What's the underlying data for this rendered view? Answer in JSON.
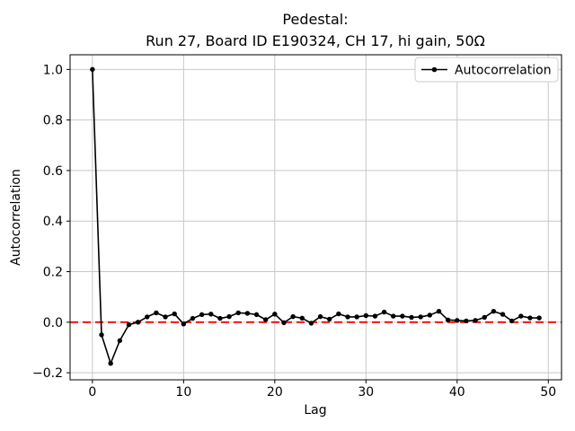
{
  "chart_data": {
    "type": "line",
    "title": "Pedestal:\nRun 27, Board ID E190324, CH 17, hi gain, 50Ω",
    "title_lines": [
      "Pedestal:",
      "Run 27, Board ID E190324, CH 17, hi gain, 50Ω"
    ],
    "xlabel": "Lag",
    "ylabel": "Autocorrelation",
    "legend": {
      "position": "upper right",
      "entries": [
        "Autocorrelation"
      ]
    },
    "x": [
      0,
      1,
      2,
      3,
      4,
      5,
      6,
      7,
      8,
      9,
      10,
      11,
      12,
      13,
      14,
      15,
      16,
      17,
      18,
      19,
      20,
      21,
      22,
      23,
      24,
      25,
      26,
      27,
      28,
      29,
      30,
      31,
      32,
      33,
      34,
      35,
      36,
      37,
      38,
      39,
      40,
      41,
      42,
      43,
      44,
      45,
      46,
      47,
      48,
      49
    ],
    "series": [
      {
        "name": "Autocorrelation",
        "color": "#000000",
        "marker": "o",
        "values": [
          1.0,
          -0.05,
          -0.163,
          -0.073,
          -0.01,
          0.0,
          0.021,
          0.037,
          0.021,
          0.033,
          -0.007,
          0.015,
          0.03,
          0.032,
          0.015,
          0.022,
          0.037,
          0.035,
          0.03,
          0.01,
          0.032,
          -0.002,
          0.022,
          0.016,
          -0.004,
          0.022,
          0.012,
          0.033,
          0.021,
          0.021,
          0.026,
          0.024,
          0.04,
          0.024,
          0.024,
          0.019,
          0.021,
          0.028,
          0.043,
          0.009,
          0.007,
          0.005,
          0.007,
          0.019,
          0.043,
          0.031,
          0.005,
          0.024,
          0.017,
          0.017
        ]
      }
    ],
    "zero_line": {
      "y": 0.0,
      "color": "#ff0000",
      "style": "dashed"
    },
    "xticks": [
      0,
      10,
      20,
      30,
      40,
      50
    ],
    "xtick_labels": [
      "0",
      "10",
      "20",
      "30",
      "40",
      "50"
    ],
    "yticks": [
      -0.2,
      0.0,
      0.2,
      0.4,
      0.6,
      0.8,
      1.0
    ],
    "ytick_labels": [
      "−0.2",
      "0.0",
      "0.2",
      "0.4",
      "0.6",
      "0.8",
      "1.0"
    ],
    "xlim": [
      -2.45,
      51.45
    ],
    "ylim": [
      -0.228,
      1.058
    ],
    "grid": true,
    "colors": {
      "background": "#ffffff",
      "grid": "#c8c8c8",
      "line": "#000000",
      "zero_line": "#ff0000",
      "spine": "#000000",
      "legend_edge": "#cccccc"
    }
  }
}
